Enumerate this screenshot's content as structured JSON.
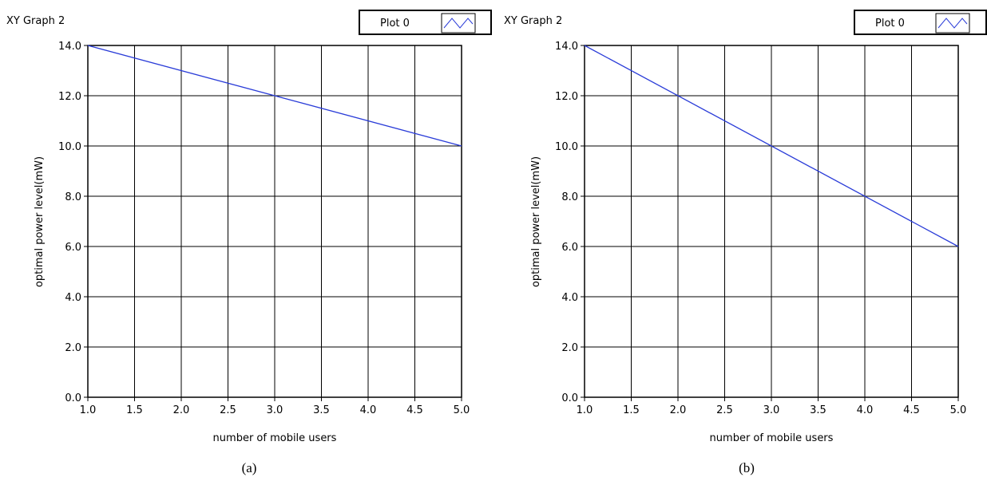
{
  "charts": [
    {
      "graph_title": "XY Graph 2",
      "legend_label": "Plot 0",
      "caption": "(a)",
      "xlabel": "number of mobile users",
      "ylabel": "optimal power level(mW)",
      "x_ticks": [
        "1.0",
        "1.5",
        "2.0",
        "2.5",
        "3.0",
        "3.5",
        "4.0",
        "4.5",
        "5.0"
      ],
      "y_ticks": [
        "0.0",
        "2.0",
        "4.0",
        "6.0",
        "8.0",
        "10.0",
        "12.0",
        "14.0"
      ]
    },
    {
      "graph_title": "XY Graph 2",
      "legend_label": "Plot 0",
      "caption": "(b)",
      "xlabel": "number of mobile users",
      "ylabel": "optimal power level(mW)",
      "x_ticks": [
        "1.0",
        "1.5",
        "2.0",
        "2.5",
        "3.0",
        "3.5",
        "4.0",
        "4.5",
        "5.0"
      ],
      "y_ticks": [
        "0.0",
        "2.0",
        "4.0",
        "6.0",
        "8.0",
        "10.0",
        "12.0",
        "14.0"
      ]
    }
  ],
  "chart_data": [
    {
      "type": "line",
      "title": "XY Graph 2",
      "xlabel": "number of mobile users",
      "ylabel": "optimal power level(mW)",
      "xlim": [
        1.0,
        5.0
      ],
      "ylim": [
        0.0,
        14.0
      ],
      "grid": true,
      "legend": "top-right",
      "series": [
        {
          "name": "Plot 0",
          "color": "#2a3cd8",
          "x": [
            1.0,
            5.0
          ],
          "y": [
            14.0,
            10.0
          ]
        }
      ]
    },
    {
      "type": "line",
      "title": "XY Graph 2",
      "xlabel": "number of mobile users",
      "ylabel": "optimal power level(mW)",
      "xlim": [
        1.0,
        5.0
      ],
      "ylim": [
        0.0,
        14.0
      ],
      "grid": true,
      "legend": "top-right",
      "series": [
        {
          "name": "Plot 0",
          "color": "#2a3cd8",
          "x": [
            1.0,
            5.0
          ],
          "y": [
            14.0,
            6.0
          ]
        }
      ]
    }
  ]
}
